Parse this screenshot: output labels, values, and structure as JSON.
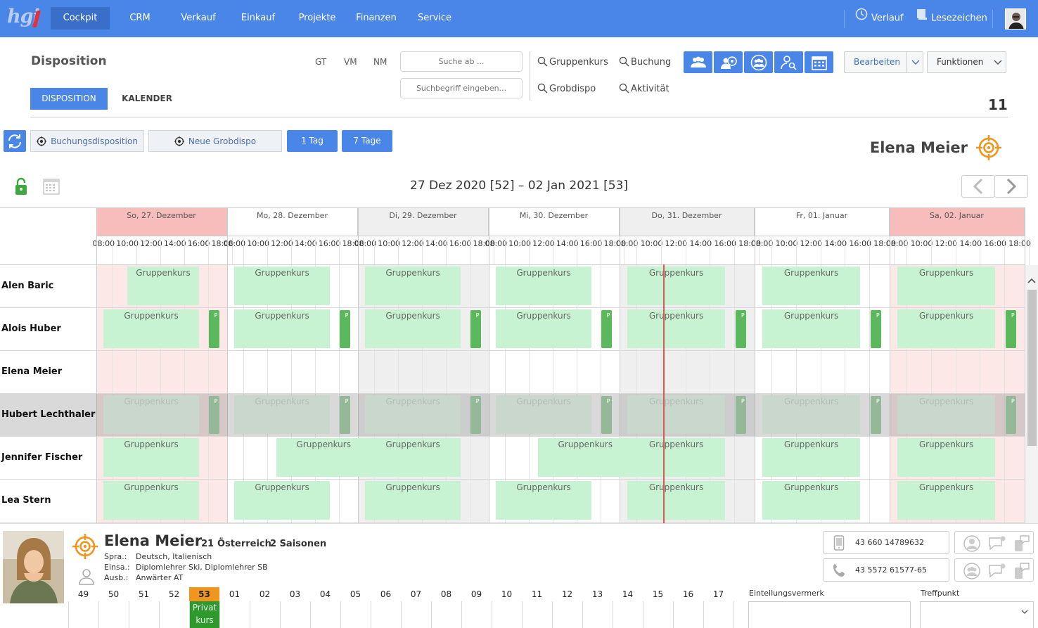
{
  "nav": {
    "logo_text": "hgi",
    "items": [
      {
        "label": "Cockpit",
        "active": true
      },
      {
        "label": "CRM"
      },
      {
        "label": "Verkauf"
      },
      {
        "label": "Einkauf"
      },
      {
        "label": "Projekte"
      },
      {
        "label": "Finanzen"
      },
      {
        "label": "Service"
      }
    ],
    "history_label": "Verlauf",
    "bookmarks_label": "Lesezeichen"
  },
  "header": {
    "title": "Disposition",
    "tabs": [
      {
        "label": "DISPOSITION",
        "active": true
      },
      {
        "label": "KALENDER"
      }
    ],
    "shortcuts": [
      "GT",
      "VM",
      "NM"
    ],
    "search_from_placeholder": "Suche ab ...",
    "search_term_placeholder": "Suchbegriff eingeben...",
    "quick_links": [
      "Gruppenkurs",
      "Buchung",
      "Grobdispo",
      "Aktivität"
    ],
    "edit_label": "Bearbeiten",
    "functions_label": "Funktionen",
    "count": "11"
  },
  "toolbar": {
    "booking_dispo_label": "Buchungsdisposition",
    "new_grobdispo_label": "Neue Grobdispo",
    "one_day_label": "1 Tag",
    "seven_days_label": "7 Tage",
    "selected_person": "Elena Meier",
    "date_range": "27 Dez 2020 [52] – 02 Jan 2021 [53]"
  },
  "colors": {
    "accent": "#4a86e8",
    "weekend_header": "#f7bcbc",
    "weekend_cell": "#fde8e8",
    "alt_day": "#efefef",
    "block": "#c8f3d2",
    "mini_block": "#5cb85c",
    "now_line": "#e05555",
    "target_icon": "#f0961e"
  },
  "schedule": {
    "days": [
      {
        "label": "So, 27. Dezember",
        "type": "weekend"
      },
      {
        "label": "Mo, 28. Dezember",
        "type": "white"
      },
      {
        "label": "Di, 29. Dezember",
        "type": "gray"
      },
      {
        "label": "Mi, 30. Dezember",
        "type": "white"
      },
      {
        "label": "Do, 31. Dezember",
        "type": "gray"
      },
      {
        "label": "Fr, 01. Januar",
        "type": "white"
      },
      {
        "label": "Sa, 02. Januar",
        "type": "weekend"
      }
    ],
    "hours": [
      "08:00",
      "10:00",
      "12:00",
      "14:00",
      "16:00",
      "18:00"
    ],
    "block_label": "Gruppenkurs",
    "mini_label": "P",
    "rows": [
      {
        "name": "Alen Baric",
        "blocks": [
          [
            "10:00",
            "16:00"
          ],
          [
            "08:00",
            "16:00"
          ],
          [
            "08:00",
            "16:00"
          ],
          [
            "08:00",
            "16:00"
          ],
          [
            "08:00",
            "16:00"
          ],
          [
            "08:00",
            "16:00"
          ],
          [
            "08:00",
            "16:00"
          ]
        ],
        "mini": false
      },
      {
        "name": "Alois Huber",
        "blocks": [
          [
            "08:00",
            "16:00"
          ],
          [
            "08:00",
            "16:00"
          ],
          [
            "08:00",
            "16:00"
          ],
          [
            "08:00",
            "16:00"
          ],
          [
            "08:00",
            "16:00"
          ],
          [
            "08:00",
            "16:00"
          ],
          [
            "08:00",
            "16:00"
          ]
        ],
        "mini": true
      },
      {
        "name": "Elena Meier",
        "blocks": [],
        "mini": false
      },
      {
        "name": "Hubert Lechthaler",
        "blocks": [
          [
            "08:00",
            "16:00"
          ],
          [
            "08:00",
            "16:00"
          ],
          [
            "08:00",
            "16:00"
          ],
          [
            "08:00",
            "16:00"
          ],
          [
            "08:00",
            "16:00"
          ],
          [
            "08:00",
            "16:00"
          ],
          [
            "08:00",
            "16:00"
          ]
        ],
        "mini": true,
        "dim": true
      },
      {
        "name": "Jennifer Fischer",
        "blocks": [
          [
            "08:00",
            "16:00"
          ],
          [
            "11:30",
            "19:30"
          ],
          [
            "08:00",
            "16:00"
          ],
          [
            "11:30",
            "19:30"
          ],
          [
            "08:00",
            "16:00"
          ],
          [
            "08:00",
            "16:00"
          ],
          [
            "08:00",
            "16:00"
          ]
        ],
        "mini": false
      },
      {
        "name": "Lea Stern",
        "blocks": [
          [
            "08:00",
            "16:00"
          ],
          [
            "08:00",
            "16:00"
          ],
          [
            "08:00",
            "16:00"
          ],
          [
            "08:00",
            "16:00"
          ],
          [
            "08:00",
            "16:00"
          ],
          [
            "08:00",
            "16:00"
          ],
          [
            "08:00",
            "16:00"
          ]
        ],
        "mini": false
      }
    ]
  },
  "profile": {
    "name": "Elena Meier",
    "age": "21",
    "country": "Österreich",
    "seasons": "2 Saisonen",
    "fields": [
      {
        "key": "Spra.:",
        "value": "Deutsch, Italienisch"
      },
      {
        "key": "Einsa.:",
        "value": "Diplomlehrer Ski, Diplomlehrer SB"
      },
      {
        "key": "Ausb.:",
        "value": "Anwärter AT"
      }
    ],
    "phone1": "43 660 14789632",
    "phone2": "43 5572 61577-65",
    "weeks": [
      "49",
      "50",
      "51",
      "52",
      "53",
      "01",
      "02",
      "03",
      "04",
      "05",
      "06",
      "07",
      "08",
      "09",
      "10",
      "11",
      "12",
      "13",
      "14",
      "15",
      "16",
      "17"
    ],
    "current_week": "53",
    "current_week_entry": "Privatkurs",
    "note_label": "Einteilungsvermerk",
    "meeting_point_label": "Treffpunkt"
  }
}
